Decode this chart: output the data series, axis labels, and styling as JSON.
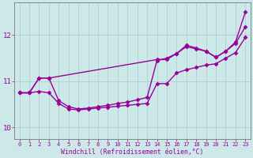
{
  "xlabel": "Windchill (Refroidissement éolien,°C)",
  "bg_color": "#cce8e8",
  "line_color": "#990099",
  "marker": "D",
  "markersize": 2.5,
  "linewidth": 1.0,
  "xlim": [
    -0.5,
    23.5
  ],
  "ylim": [
    9.75,
    12.7
  ],
  "yticks": [
    10,
    11,
    12
  ],
  "xticks": [
    0,
    1,
    2,
    3,
    4,
    5,
    6,
    7,
    8,
    9,
    10,
    11,
    12,
    13,
    14,
    15,
    16,
    17,
    18,
    19,
    20,
    21,
    22,
    23
  ],
  "series1_x": [
    0,
    1,
    2,
    3,
    4,
    5,
    6,
    7,
    8,
    9,
    10,
    11,
    12,
    13,
    14,
    15,
    16,
    17,
    18,
    19,
    20,
    21,
    22,
    23
  ],
  "series1_y": [
    10.75,
    10.75,
    10.78,
    10.75,
    10.52,
    10.4,
    10.38,
    10.4,
    10.42,
    10.44,
    10.46,
    10.48,
    10.5,
    10.52,
    10.95,
    10.95,
    11.18,
    11.25,
    11.3,
    11.35,
    11.38,
    11.5,
    11.62,
    11.95
  ],
  "series2_x": [
    0,
    1,
    2,
    3,
    4,
    5,
    6,
    7,
    8,
    9,
    10,
    11,
    12,
    13,
    14,
    15,
    16,
    17,
    18,
    19,
    20,
    21,
    22,
    23
  ],
  "series2_y": [
    10.75,
    10.75,
    11.07,
    11.07,
    10.58,
    10.45,
    10.4,
    10.42,
    10.45,
    10.48,
    10.52,
    10.55,
    10.6,
    10.65,
    11.45,
    11.5,
    11.6,
    11.75,
    11.7,
    11.65,
    11.52,
    11.65,
    11.82,
    12.18
  ],
  "series3_x": [
    0,
    1,
    2,
    3,
    14,
    15,
    16,
    17,
    18,
    19,
    20,
    21,
    22,
    23
  ],
  "series3_y": [
    10.75,
    10.75,
    11.07,
    11.07,
    11.47,
    11.47,
    11.6,
    11.78,
    11.72,
    11.65,
    11.52,
    11.65,
    11.85,
    12.5
  ]
}
